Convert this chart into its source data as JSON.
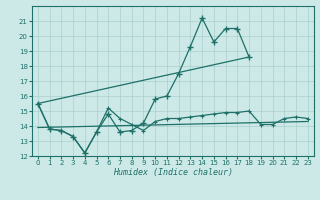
{
  "xlabel": "Humidex (Indice chaleur)",
  "bg_color": "#cce9e7",
  "grid_color": "#aacfcc",
  "line_color": "#1e7068",
  "series1_x": [
    0,
    1,
    2,
    3,
    4,
    5,
    6,
    7,
    8,
    9,
    10,
    11,
    12,
    13,
    14,
    15,
    16,
    17,
    18
  ],
  "series1_y": [
    15.5,
    13.8,
    13.7,
    13.3,
    12.2,
    13.6,
    14.8,
    13.6,
    13.7,
    14.2,
    15.8,
    16.0,
    17.5,
    19.3,
    21.2,
    19.6,
    20.5,
    20.5,
    18.6
  ],
  "series2_x": [
    0,
    1,
    2,
    3,
    4,
    5,
    6,
    7,
    8,
    9,
    10,
    11,
    12,
    13,
    14,
    15,
    16,
    17,
    18,
    19,
    20,
    21,
    22,
    23
  ],
  "series2_y": [
    15.5,
    13.8,
    13.7,
    13.3,
    12.2,
    13.6,
    15.2,
    14.5,
    14.1,
    13.7,
    14.3,
    14.5,
    14.5,
    14.6,
    14.7,
    14.8,
    14.9,
    14.9,
    15.0,
    14.1,
    14.1,
    14.5,
    14.6,
    14.5
  ],
  "trend1_x": [
    0,
    18
  ],
  "trend1_y": [
    15.5,
    18.6
  ],
  "trend2_x": [
    0,
    23
  ],
  "trend2_y": [
    13.9,
    14.3
  ],
  "ylim": [
    12,
    22
  ],
  "xlim": [
    -0.5,
    23.5
  ],
  "yticks": [
    12,
    13,
    14,
    15,
    16,
    17,
    18,
    19,
    20,
    21
  ],
  "xticks": [
    0,
    1,
    2,
    3,
    4,
    5,
    6,
    7,
    8,
    9,
    10,
    11,
    12,
    13,
    14,
    15,
    16,
    17,
    18,
    19,
    20,
    21,
    22,
    23
  ]
}
